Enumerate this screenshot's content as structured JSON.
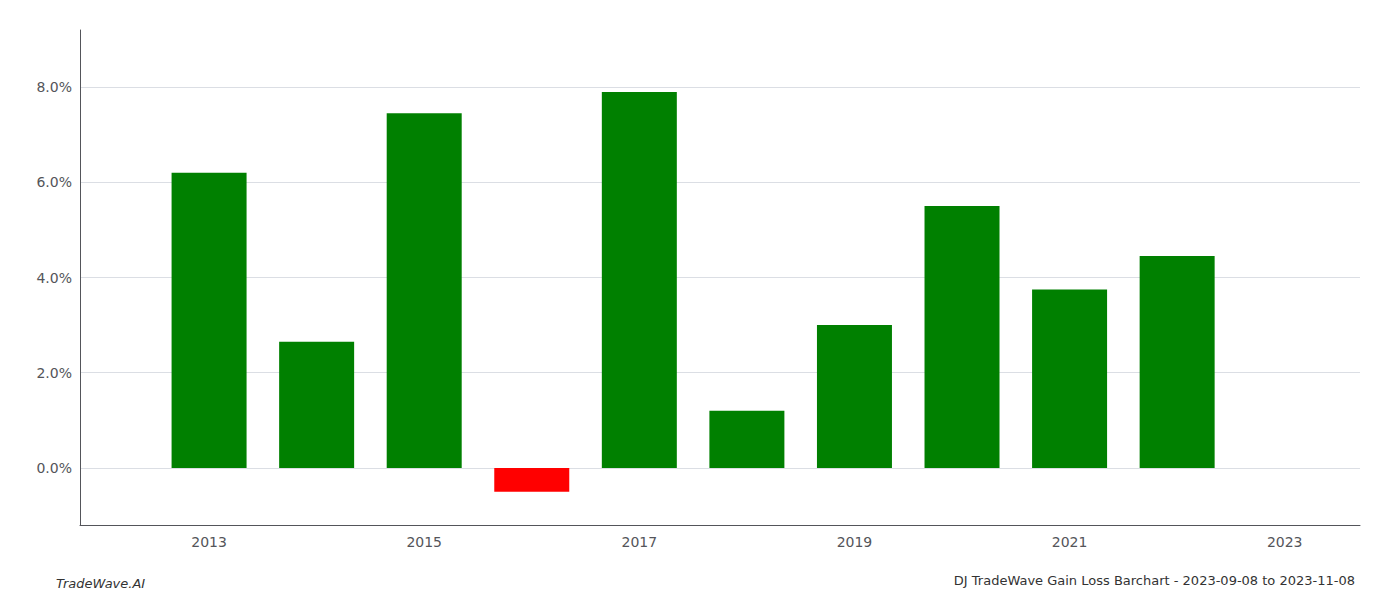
{
  "chart_data": {
    "type": "bar",
    "title": "DJ TradeWave Gain Loss Barchart - 2023-09-08 to 2023-11-08",
    "annotations": [
      "TradeWave.AI"
    ],
    "x": [
      2013,
      2014,
      2015,
      2016,
      2017,
      2018,
      2019,
      2020,
      2021,
      2022
    ],
    "values": [
      0.062,
      0.0265,
      0.0745,
      -0.005,
      0.079,
      0.012,
      0.03,
      0.055,
      0.0375,
      0.0445
    ],
    "colors": [
      "#008000",
      "#008000",
      "#008000",
      "#ff0000",
      "#008000",
      "#008000",
      "#008000",
      "#008000",
      "#008000",
      "#008000"
    ],
    "xlim": [
      2011.8,
      2023.7
    ],
    "xticks": [
      2013,
      2015,
      2017,
      2019,
      2021,
      2023
    ],
    "ylim": [
      -0.012,
      0.092
    ],
    "yticks": [
      {
        "value": 0.0,
        "label": "0.0%"
      },
      {
        "value": 0.02,
        "label": "2.0%"
      },
      {
        "value": 0.04,
        "label": "4.0%"
      },
      {
        "value": 0.06,
        "label": "6.0%"
      },
      {
        "value": 0.08,
        "label": "8.0%"
      }
    ],
    "grid": true
  }
}
